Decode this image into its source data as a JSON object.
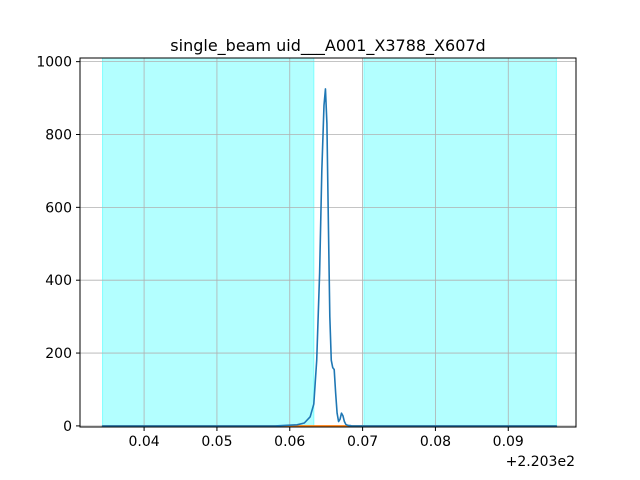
{
  "chart_data": {
    "type": "line",
    "title": "single_beam uid___A001_X3788_X607d",
    "xlabel": "",
    "ylabel": "",
    "x_offset_label": "+2.203e2",
    "x_tick_labels": [
      "0.04",
      "0.05",
      "0.06",
      "0.07",
      "0.08",
      "0.09"
    ],
    "x_ticks": [
      0.04,
      0.05,
      0.06,
      0.07,
      0.08,
      0.09
    ],
    "y_tick_labels": [
      "0",
      "200",
      "400",
      "600",
      "800",
      "1000"
    ],
    "y_ticks": [
      0,
      200,
      400,
      600,
      800,
      1000
    ],
    "xlim": [
      0.0312,
      0.0993
    ],
    "ylim": [
      -3,
      1010
    ],
    "grid": true,
    "legend": "none",
    "shaded_regions": [
      {
        "x_start": 0.0343,
        "x_end": 0.0633,
        "color": "#b3ffff",
        "edge_color": "#7fffff"
      },
      {
        "x_start": 0.0702,
        "x_end": 0.0966,
        "color": "#b3ffff",
        "edge_color": "#7fffff"
      }
    ],
    "series": [
      {
        "color": "#1f77b4",
        "x": [
          0.0343,
          0.058,
          0.061,
          0.062,
          0.0628,
          0.0633,
          0.0637,
          0.0641,
          0.0644,
          0.0647,
          0.0649,
          0.0651,
          0.0653,
          0.0655,
          0.0657,
          0.0659,
          0.0661,
          0.0663,
          0.0665,
          0.0667,
          0.0669,
          0.0671,
          0.0673,
          0.0675,
          0.0677,
          0.0679,
          0.0681,
          0.0683,
          0.0685,
          0.069,
          0.07,
          0.0966
        ],
        "y": [
          0,
          0,
          3,
          8,
          25,
          60,
          180,
          420,
          700,
          880,
          925,
          830,
          560,
          300,
          180,
          160,
          155,
          90,
          35,
          12,
          18,
          35,
          28,
          12,
          4,
          2,
          1,
          1,
          0,
          0,
          0,
          0
        ]
      },
      {
        "color": "#ff7f0e",
        "x": [
          0.0343,
          0.0966
        ],
        "y": [
          0,
          0
        ]
      }
    ]
  }
}
